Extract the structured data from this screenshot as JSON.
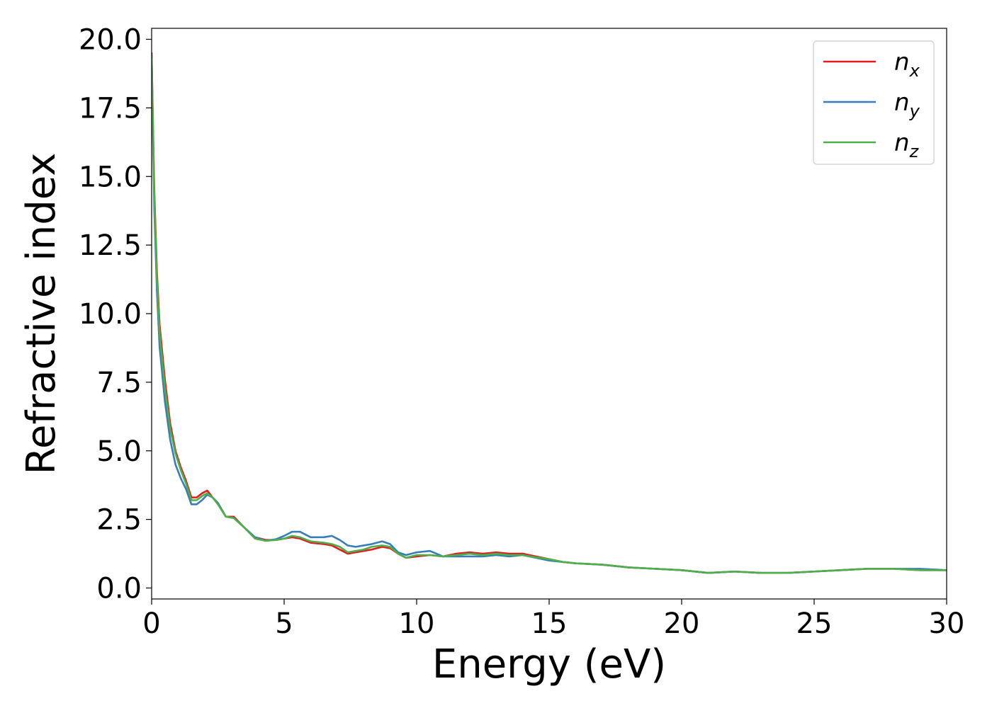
{
  "chart_data": {
    "type": "line",
    "xlabel": "Energy (eV)",
    "ylabel": "Refractive index",
    "xlim": [
      0,
      30
    ],
    "ylim": [
      -0.4,
      20.4
    ],
    "xticks": [
      0,
      5,
      10,
      15,
      20,
      25,
      30
    ],
    "xtick_labels": [
      "0",
      "5",
      "10",
      "15",
      "20",
      "25",
      "30"
    ],
    "yticks": [
      0,
      2.5,
      5,
      7.5,
      10,
      12.5,
      15,
      17.5,
      20
    ],
    "ytick_labels": [
      "0.0",
      "2.5",
      "5.0",
      "7.5",
      "10.0",
      "12.5",
      "15.0",
      "17.5",
      "20.0"
    ],
    "grid": false,
    "legend_position": "top-right",
    "series": [
      {
        "legend_base": "n",
        "legend_sub": "x",
        "color": "#e41a1c",
        "x": [
          0,
          0.1,
          0.2,
          0.3,
          0.5,
          0.7,
          0.9,
          1.1,
          1.3,
          1.5,
          1.7,
          1.9,
          2.1,
          2.3,
          2.5,
          2.8,
          3.1,
          3.5,
          3.9,
          4.3,
          4.7,
          5.0,
          5.3,
          5.6,
          6.0,
          6.5,
          6.8,
          7.1,
          7.4,
          7.7,
          8.0,
          8.3,
          8.7,
          9.0,
          9.3,
          9.6,
          10.0,
          10.5,
          11.0,
          11.5,
          12.0,
          12.5,
          13.0,
          13.5,
          14.0,
          14.5,
          15.0,
          15.5,
          16.0,
          17.0,
          18.0,
          19.0,
          20.0,
          21.0,
          22.0,
          23.0,
          24.0,
          25.0,
          26.0,
          27.0,
          28.0,
          29.0,
          30.0
        ],
        "y": [
          19.5,
          14.5,
          11.5,
          9.6,
          7.6,
          6.0,
          5.0,
          4.4,
          3.9,
          3.3,
          3.3,
          3.45,
          3.55,
          3.3,
          3.1,
          2.6,
          2.6,
          2.2,
          1.85,
          1.75,
          1.75,
          1.8,
          1.85,
          1.8,
          1.65,
          1.6,
          1.55,
          1.4,
          1.25,
          1.3,
          1.35,
          1.4,
          1.5,
          1.45,
          1.25,
          1.1,
          1.15,
          1.2,
          1.15,
          1.25,
          1.3,
          1.25,
          1.3,
          1.25,
          1.25,
          1.15,
          1.05,
          0.95,
          0.9,
          0.85,
          0.75,
          0.7,
          0.65,
          0.55,
          0.6,
          0.55,
          0.55,
          0.6,
          0.65,
          0.7,
          0.7,
          0.65,
          0.65
        ]
      },
      {
        "legend_base": "n",
        "legend_sub": "y",
        "color": "#377eb8",
        "x": [
          0,
          0.1,
          0.2,
          0.3,
          0.5,
          0.7,
          0.9,
          1.1,
          1.3,
          1.5,
          1.7,
          1.9,
          2.1,
          2.3,
          2.5,
          2.8,
          3.1,
          3.5,
          3.9,
          4.3,
          4.7,
          5.0,
          5.3,
          5.6,
          6.0,
          6.5,
          6.8,
          7.1,
          7.4,
          7.7,
          8.0,
          8.3,
          8.7,
          9.0,
          9.3,
          9.6,
          10.0,
          10.5,
          11.0,
          11.5,
          12.0,
          12.5,
          13.0,
          13.5,
          14.0,
          14.5,
          15.0,
          15.5,
          16.0,
          17.0,
          18.0,
          19.0,
          20.0,
          21.0,
          22.0,
          23.0,
          24.0,
          25.0,
          26.0,
          27.0,
          28.0,
          29.0,
          30.0
        ],
        "y": [
          19.4,
          13.8,
          10.8,
          8.8,
          6.8,
          5.4,
          4.5,
          4.0,
          3.6,
          3.05,
          3.05,
          3.2,
          3.4,
          3.3,
          3.1,
          2.6,
          2.55,
          2.2,
          1.85,
          1.72,
          1.78,
          1.9,
          2.05,
          2.05,
          1.85,
          1.85,
          1.9,
          1.75,
          1.55,
          1.5,
          1.55,
          1.6,
          1.7,
          1.6,
          1.3,
          1.2,
          1.3,
          1.35,
          1.15,
          1.15,
          1.15,
          1.15,
          1.2,
          1.15,
          1.2,
          1.1,
          1.0,
          0.95,
          0.9,
          0.85,
          0.75,
          0.7,
          0.65,
          0.55,
          0.6,
          0.55,
          0.55,
          0.6,
          0.65,
          0.7,
          0.7,
          0.7,
          0.65
        ]
      },
      {
        "legend_base": "n",
        "legend_sub": "z",
        "color": "#4daf4a",
        "x": [
          0,
          0.1,
          0.2,
          0.3,
          0.5,
          0.7,
          0.9,
          1.1,
          1.3,
          1.5,
          1.7,
          1.9,
          2.1,
          2.3,
          2.5,
          2.8,
          3.1,
          3.5,
          3.9,
          4.3,
          4.7,
          5.0,
          5.3,
          5.6,
          6.0,
          6.5,
          6.8,
          7.1,
          7.4,
          7.7,
          8.0,
          8.3,
          8.7,
          9.0,
          9.3,
          9.6,
          10.0,
          10.5,
          11.0,
          11.5,
          12.0,
          12.5,
          13.0,
          13.5,
          14.0,
          14.5,
          15.0,
          15.5,
          16.0,
          17.0,
          18.0,
          19.0,
          20.0,
          21.0,
          22.0,
          23.0,
          24.0,
          25.0,
          26.0,
          27.0,
          28.0,
          29.0,
          30.0
        ],
        "y": [
          19.3,
          14.2,
          11.2,
          9.3,
          7.3,
          5.8,
          4.9,
          4.3,
          3.8,
          3.2,
          3.2,
          3.35,
          3.45,
          3.3,
          3.05,
          2.6,
          2.55,
          2.2,
          1.8,
          1.72,
          1.75,
          1.8,
          1.9,
          1.85,
          1.7,
          1.65,
          1.6,
          1.5,
          1.3,
          1.35,
          1.4,
          1.5,
          1.55,
          1.5,
          1.25,
          1.1,
          1.2,
          1.2,
          1.15,
          1.2,
          1.25,
          1.2,
          1.25,
          1.2,
          1.2,
          1.12,
          1.05,
          0.95,
          0.9,
          0.85,
          0.75,
          0.7,
          0.65,
          0.55,
          0.6,
          0.55,
          0.55,
          0.6,
          0.65,
          0.7,
          0.7,
          0.65,
          0.65
        ]
      }
    ]
  }
}
